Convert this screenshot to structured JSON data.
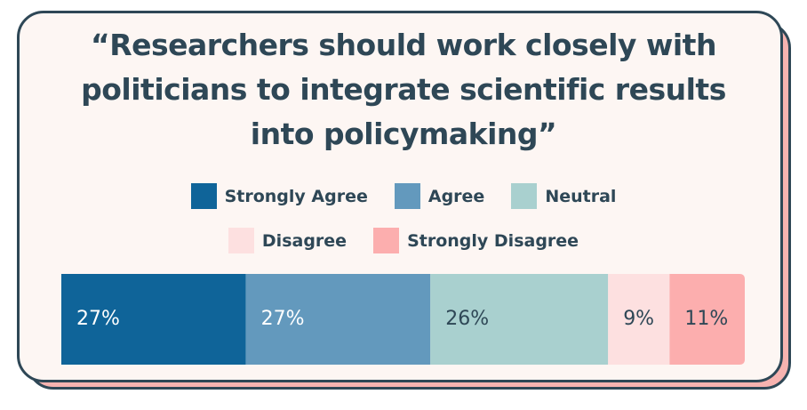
{
  "chart_data": {
    "type": "stacked-bar",
    "orientation": "horizontal",
    "title": "“Researchers should work closely with politicians to integrate scientific results into policymaking”",
    "xlim": [
      0,
      100
    ],
    "series": [
      {
        "name": "Strongly Agree",
        "color": "#0f6499",
        "values": [
          27
        ],
        "value_labels": [
          "27%"
        ]
      },
      {
        "name": "Agree",
        "color": "#6399bd",
        "values": [
          27
        ],
        "value_labels": [
          "27%"
        ]
      },
      {
        "name": "Neutral",
        "color": "#a9d0cf",
        "values": [
          26
        ],
        "value_labels": [
          "26%"
        ]
      },
      {
        "name": "Disagree",
        "color": "#fde0e0",
        "values": [
          9
        ],
        "value_labels": [
          "9%"
        ]
      },
      {
        "name": "Strongly Disagree",
        "color": "#fcaeae",
        "values": [
          11
        ],
        "value_labels": [
          "11%"
        ]
      }
    ]
  }
}
